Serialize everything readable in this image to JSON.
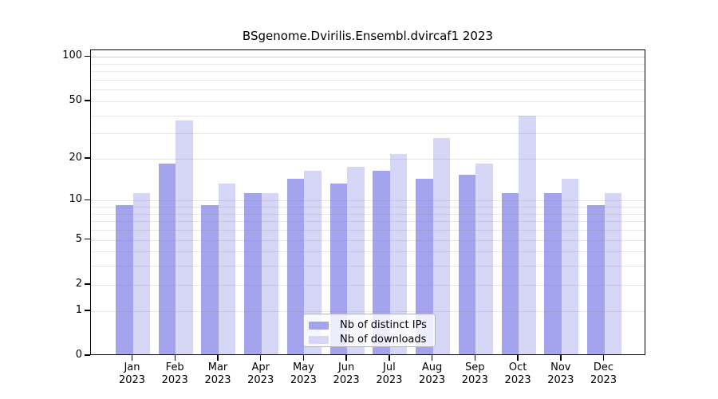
{
  "chart_data": {
    "type": "bar",
    "title": "BSgenome.Dvirilis.Ensembl.dvircaf1 2023",
    "categories": [
      "Jan",
      "Feb",
      "Mar",
      "Apr",
      "May",
      "Jun",
      "Jul",
      "Aug",
      "Sep",
      "Oct",
      "Nov",
      "Dec"
    ],
    "year_label": "2023",
    "series": [
      {
        "name": "Nb of distinct IPs",
        "color": "#a3a3ee",
        "values": [
          9,
          18,
          9,
          11,
          14,
          13,
          16,
          14,
          15,
          11,
          11,
          9
        ]
      },
      {
        "name": "Nb of downloads",
        "color": "#d6d6f7",
        "values": [
          11,
          36,
          13,
          11,
          16,
          17,
          21,
          27,
          18,
          39,
          14,
          11
        ]
      }
    ],
    "xlabel": "",
    "ylabel": "",
    "y_scale": "log1p",
    "ylim": [
      0,
      110
    ],
    "y_ticks": [
      0,
      1,
      2,
      5,
      10,
      20,
      50,
      100
    ],
    "y_tick_labels": [
      "0",
      "1",
      "2",
      "5",
      "10",
      "20",
      "50",
      "100"
    ],
    "y_gridlines": [
      1,
      2,
      3,
      4,
      5,
      6,
      7,
      8,
      9,
      10,
      20,
      30,
      40,
      50,
      60,
      70,
      80,
      90,
      100
    ],
    "grid": true,
    "legend_position": "bottom-center"
  }
}
